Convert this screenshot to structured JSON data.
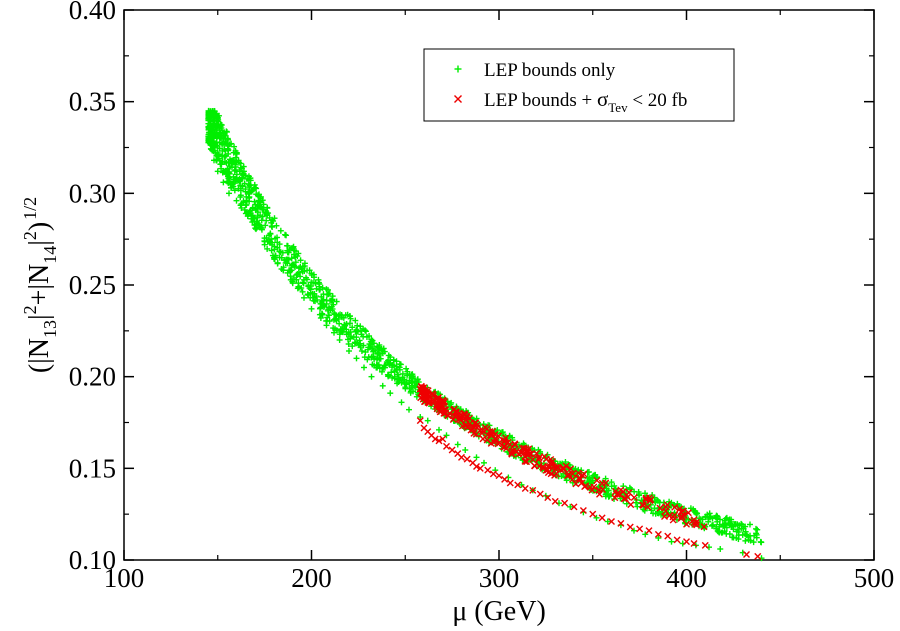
{
  "chart_data": {
    "type": "scatter",
    "title": "",
    "xlabel": "μ  (GeV)",
    "ylabel": {
      "main": "(|N",
      "sub1": "13",
      "mid1": "|",
      "sup1": "2",
      "mid2": "+|N",
      "sub2": "14",
      "mid3": "|",
      "sup2": "2",
      "end": ")",
      "sup3": "1/2"
    },
    "xlim": [
      100,
      500
    ],
    "ylim": [
      0.1,
      0.4
    ],
    "xticks": [
      100,
      200,
      300,
      400,
      500
    ],
    "xtick_labels": [
      "100",
      "200",
      "300",
      "400",
      "500"
    ],
    "yticks": [
      0.1,
      0.15,
      0.2,
      0.25,
      0.3,
      0.35,
      0.4
    ],
    "ytick_labels": [
      "0.10",
      "0.15",
      "0.20",
      "0.25",
      "0.30",
      "0.35",
      "0.40"
    ],
    "legend_position": "top-right",
    "series": [
      {
        "name": "LEP bounds only",
        "legend_text": "LEP bounds only",
        "marker": "plus",
        "color": "#00ee00",
        "x_range": [
          145,
          440
        ],
        "trend": "y ≈ 0.34 at μ=147 falling to ≈ 0.10 at μ=440",
        "points": [
          [
            146,
            0.34
          ],
          [
            146,
            0.332
          ],
          [
            147,
            0.336
          ],
          [
            147,
            0.326
          ],
          [
            148,
            0.33
          ],
          [
            148,
            0.318
          ],
          [
            150,
            0.322
          ],
          [
            150,
            0.312
          ],
          [
            152,
            0.316
          ],
          [
            153,
            0.306
          ],
          [
            155,
            0.311
          ],
          [
            156,
            0.3
          ],
          [
            158,
            0.305
          ],
          [
            160,
            0.296
          ],
          [
            162,
            0.298
          ],
          [
            165,
            0.289
          ],
          [
            167,
            0.29
          ],
          [
            170,
            0.281
          ],
          [
            172,
            0.283
          ],
          [
            175,
            0.272
          ],
          [
            178,
            0.273
          ],
          [
            180,
            0.265
          ],
          [
            183,
            0.265
          ],
          [
            185,
            0.258
          ],
          [
            188,
            0.258
          ],
          [
            190,
            0.251
          ],
          [
            193,
            0.251
          ],
          [
            196,
            0.243
          ],
          [
            198,
            0.245
          ],
          [
            200,
            0.237
          ],
          [
            205,
            0.232
          ],
          [
            208,
            0.228
          ],
          [
            212,
            0.224
          ],
          [
            215,
            0.22
          ],
          [
            220,
            0.214
          ],
          [
            224,
            0.21
          ],
          [
            228,
            0.205
          ],
          [
            232,
            0.2
          ],
          [
            238,
            0.195
          ],
          [
            242,
            0.191
          ],
          [
            248,
            0.186
          ],
          [
            252,
            0.182
          ],
          [
            258,
            0.178
          ],
          [
            262,
            0.176
          ],
          [
            268,
            0.171
          ],
          [
            272,
            0.168
          ],
          [
            278,
            0.163
          ],
          [
            282,
            0.16
          ],
          [
            288,
            0.156
          ],
          [
            292,
            0.153
          ],
          [
            298,
            0.149
          ],
          [
            305,
            0.145
          ],
          [
            312,
            0.141
          ],
          [
            318,
            0.138
          ],
          [
            325,
            0.135
          ],
          [
            332,
            0.131
          ],
          [
            338,
            0.129
          ],
          [
            345,
            0.126
          ],
          [
            352,
            0.123
          ],
          [
            358,
            0.121
          ],
          [
            365,
            0.119
          ],
          [
            372,
            0.116
          ],
          [
            378,
            0.114
          ],
          [
            385,
            0.112
          ],
          [
            392,
            0.11
          ],
          [
            398,
            0.109
          ],
          [
            405,
            0.108
          ],
          [
            412,
            0.107
          ],
          [
            418,
            0.106
          ],
          [
            430,
            0.104
          ],
          [
            440,
            0.101
          ]
        ]
      },
      {
        "name": "LEP bounds + σTev < 20 fb",
        "legend_text_pre": "LEP bounds + ",
        "legend_sigma": "σ",
        "legend_sub": "Tev",
        "legend_text_post": " < 20 fb",
        "marker": "x",
        "color": "#ee0000",
        "x_range": [
          258,
          440
        ],
        "points": [
          [
            258,
            0.176
          ],
          [
            260,
            0.172
          ],
          [
            262,
            0.17
          ],
          [
            264,
            0.168
          ],
          [
            266,
            0.166
          ],
          [
            268,
            0.165
          ],
          [
            270,
            0.166
          ],
          [
            272,
            0.162
          ],
          [
            275,
            0.16
          ],
          [
            278,
            0.158
          ],
          [
            280,
            0.156
          ],
          [
            283,
            0.155
          ],
          [
            286,
            0.153
          ],
          [
            288,
            0.151
          ],
          [
            290,
            0.15
          ],
          [
            294,
            0.149
          ],
          [
            297,
            0.147
          ],
          [
            300,
            0.146
          ],
          [
            303,
            0.144
          ],
          [
            306,
            0.142
          ],
          [
            310,
            0.141
          ],
          [
            314,
            0.139
          ],
          [
            318,
            0.138
          ],
          [
            322,
            0.136
          ],
          [
            326,
            0.134
          ],
          [
            330,
            0.132
          ],
          [
            335,
            0.131
          ],
          [
            340,
            0.129
          ],
          [
            345,
            0.127
          ],
          [
            350,
            0.125
          ],
          [
            355,
            0.123
          ],
          [
            360,
            0.121
          ],
          [
            365,
            0.12
          ],
          [
            370,
            0.118
          ],
          [
            375,
            0.117
          ],
          [
            380,
            0.116
          ],
          [
            385,
            0.114
          ],
          [
            390,
            0.113
          ],
          [
            395,
            0.111
          ],
          [
            400,
            0.11
          ],
          [
            404,
            0.109
          ],
          [
            410,
            0.108
          ],
          [
            432,
            0.103
          ],
          [
            438,
            0.102
          ]
        ]
      }
    ]
  }
}
